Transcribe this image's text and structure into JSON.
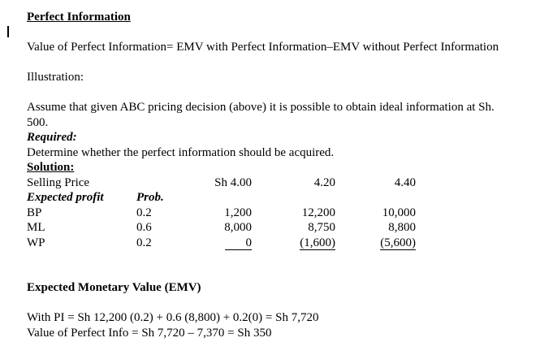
{
  "page": {
    "title": "Perfect Information",
    "formula_line": "Value of Perfect Information= EMV with Perfect Information–EMV without Perfect Information",
    "illustration_label": "Illustration:",
    "assumption_line1": "Assume that given ABC pricing decision (above) it is possible to obtain ideal information at Sh.",
    "assumption_line2": "500.",
    "required_label": "Required:",
    "required_text": "Determine whether the perfect information should be acquired.",
    "solution_label": "Solution:"
  },
  "table": {
    "selling_price_label": "Selling Price",
    "price_headers": [
      "Sh 4.00",
      "4.20",
      "4.40"
    ],
    "expected_profit_label": "Expected profit",
    "prob_label": "Prob.",
    "rows": [
      {
        "state": "BP",
        "prob": "0.2",
        "values": [
          "1,200",
          "12,200",
          "10,000"
        ]
      },
      {
        "state": "ML",
        "prob": "0.6",
        "values": [
          "8,000",
          "8,750",
          "8,800"
        ]
      },
      {
        "state": "WP",
        "prob": "0.2",
        "values": [
          "0",
          "(1,600)",
          "(5,600)"
        ]
      }
    ]
  },
  "emv": {
    "heading": "Expected Monetary Value (EMV)",
    "with_pi_line": "With PI = Sh 12,200 (0.2) + 0.6 (8,800) + 0.2(0) = Sh 7,720",
    "value_line": "Value of Perfect Info = Sh 7,720 – 7,370 = Sh 350"
  }
}
